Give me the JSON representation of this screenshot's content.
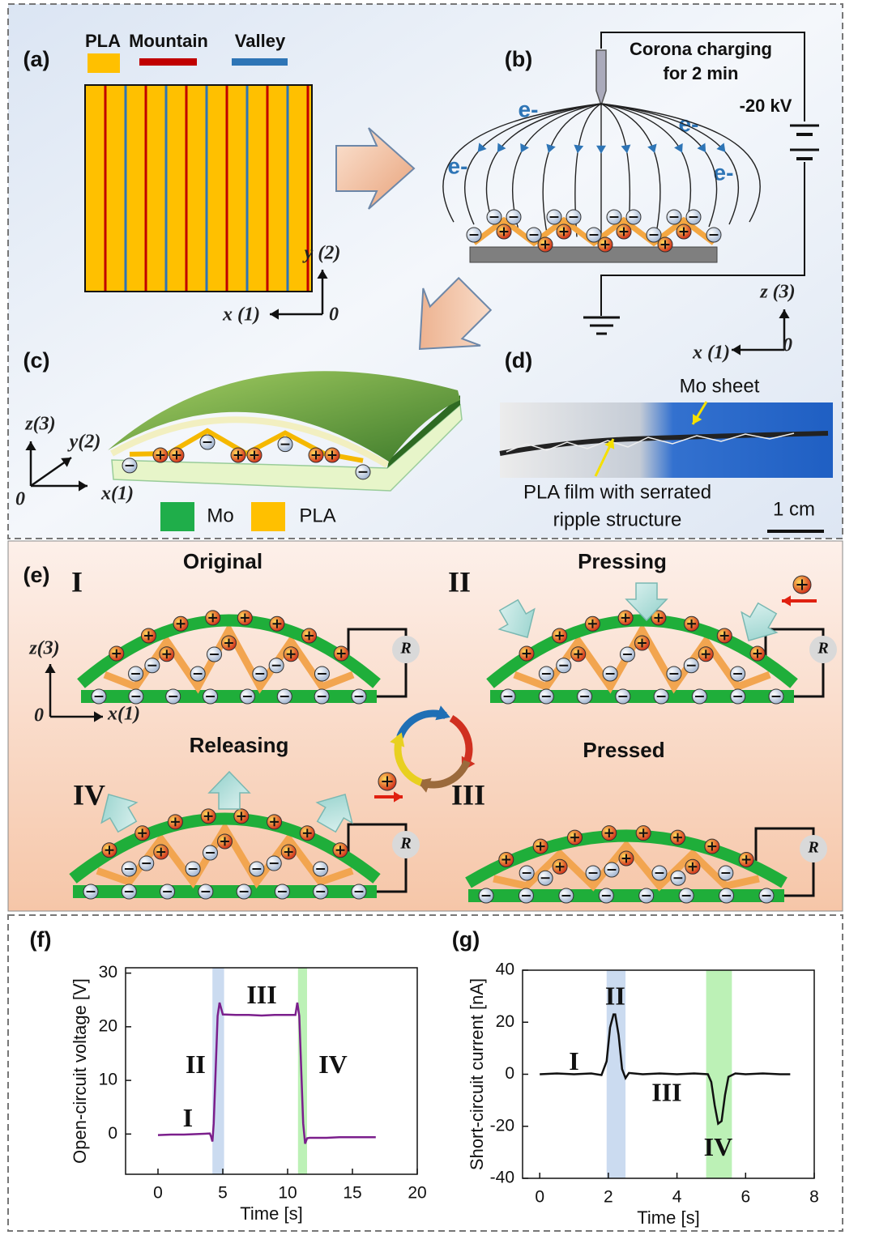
{
  "panel_a": {
    "label": "(a)",
    "legend": [
      "PLA",
      "Mountain",
      "Valley"
    ],
    "axis_y": "y (2)",
    "axis_x": "x (1)",
    "origin": "0"
  },
  "panel_b": {
    "label": "(b)",
    "note": [
      "Corona charging",
      "for 2 min"
    ],
    "voltage": "-20 kV",
    "electrons": [
      "e-",
      "e-",
      "e-",
      "e-"
    ],
    "axis_z": "z (3)",
    "axis_x": "x (1)",
    "origin": "0"
  },
  "panel_c": {
    "label": "(c)",
    "axis_z": "z(3)",
    "axis_y": "y(2)",
    "axis_x": "x(1)",
    "origin": "0",
    "legend": [
      "Mo",
      "PLA"
    ]
  },
  "panel_d": {
    "label": "(d)",
    "callout_top": "Mo sheet",
    "callout_bottom": [
      "PLA film with serrated",
      "ripple structure"
    ],
    "scale": "1 cm"
  },
  "panel_e": {
    "label": "(e)",
    "states": [
      {
        "numeral": "I",
        "title": "Original"
      },
      {
        "numeral": "II",
        "title": "Pressing"
      },
      {
        "numeral": "III",
        "title": "Pressed"
      },
      {
        "numeral": "IV",
        "title": "Releasing"
      }
    ],
    "resistor": [
      "R",
      "R",
      "R",
      "R"
    ],
    "axis_z": "z(3)",
    "axis_x": "x(1)",
    "origin": "0"
  },
  "chart_data": [
    {
      "type": "line",
      "label": "(f)",
      "xlabel": "Time [s]",
      "ylabel": "Open-circuit voltage [V]",
      "x": [
        0,
        1,
        2,
        3,
        4,
        4.1,
        4.2,
        4.3,
        4.45,
        4.6,
        4.75,
        5,
        6,
        7,
        8,
        9,
        10,
        10.6,
        10.75,
        10.9,
        11.05,
        11.2,
        11.35,
        11.5,
        11.7,
        12,
        13,
        14,
        15,
        16,
        16.8
      ],
      "series": [
        {
          "color": "#7b1f8c",
          "values": [
            -0.2,
            -0.1,
            -0.1,
            0,
            0.1,
            -0.5,
            -1.4,
            2,
            12,
            22,
            24.5,
            22.3,
            22.2,
            22.2,
            22.1,
            22.2,
            22.2,
            22.2,
            24.5,
            22,
            12,
            2,
            -1.8,
            -0.8,
            -0.7,
            -0.7,
            -0.7,
            -0.6,
            -0.6,
            -0.6,
            -0.6
          ]
        }
      ],
      "xlim": [
        -2.5,
        20
      ],
      "ylim": [
        -7.5,
        31
      ],
      "xticks": [
        0,
        5,
        10,
        15,
        20
      ],
      "yticks": [
        0,
        10,
        20,
        30
      ],
      "shaded": [
        {
          "x": [
            4.2,
            5.1
          ],
          "color": "#c5d7ee"
        },
        {
          "x": [
            10.8,
            11.5
          ],
          "color": "#b5f0ae"
        }
      ],
      "annotations": [
        "I",
        "II",
        "III",
        "IV"
      ]
    },
    {
      "type": "line",
      "label": "(g)",
      "xlabel": "Time [s]",
      "ylabel": "Short-circuit current [nA]",
      "x": [
        0,
        0.5,
        1,
        1.5,
        1.8,
        1.95,
        2.05,
        2.15,
        2.2,
        2.3,
        2.4,
        2.5,
        2.6,
        3,
        3.5,
        4,
        4.5,
        4.9,
        5,
        5.1,
        5.2,
        5.3,
        5.4,
        5.5,
        5.7,
        6,
        6.5,
        7,
        7.3
      ],
      "series": [
        {
          "color": "#111111",
          "values": [
            0,
            0.3,
            0,
            0.3,
            -0.3,
            5,
            18,
            23,
            23,
            15,
            2,
            -1.5,
            0.5,
            0,
            0.3,
            0,
            0.3,
            0,
            -3,
            -12,
            -19,
            -18,
            -8,
            -1,
            0.3,
            0,
            0.3,
            0,
            0
          ]
        }
      ],
      "xlim": [
        -0.5,
        8
      ],
      "ylim": [
        -40,
        40
      ],
      "xticks": [
        0,
        2,
        4,
        6,
        8
      ],
      "yticks": [
        -40,
        -20,
        0,
        20,
        40
      ],
      "shaded": [
        {
          "x": [
            1.95,
            2.5
          ],
          "color": "#c5d7ee"
        },
        {
          "x": [
            4.85,
            5.6
          ],
          "color": "#b5f0ae"
        }
      ],
      "annotations": [
        "I",
        "II",
        "III",
        "IV"
      ]
    }
  ]
}
